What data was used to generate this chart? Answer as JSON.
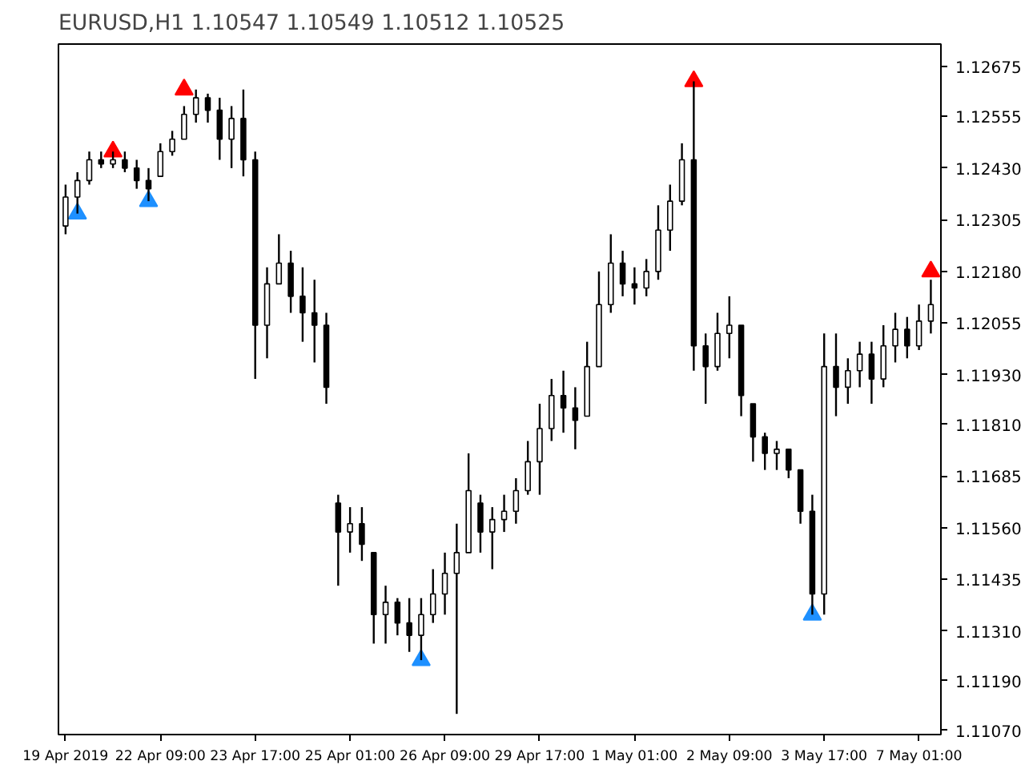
{
  "chart_data": {
    "type": "candlestick",
    "title": "EURUSD,H1 1.10547 1.10549 1.10512 1.10525",
    "color": "#000000",
    "grid": false,
    "categories": [
      "19 Apr 2019",
      null,
      null,
      null,
      null,
      null,
      null,
      null,
      "22 Apr 09:00",
      null,
      null,
      null,
      null,
      null,
      null,
      null,
      "23 Apr 17:00",
      null,
      null,
      null,
      null,
      null,
      null,
      null,
      "25 Apr 01:00",
      null,
      null,
      null,
      null,
      null,
      null,
      null,
      "26 Apr 09:00",
      null,
      null,
      null,
      null,
      null,
      null,
      null,
      "29 Apr 17:00",
      null,
      null,
      null,
      null,
      null,
      null,
      null,
      "1 May 01:00",
      null,
      null,
      null,
      null,
      null,
      null,
      null,
      "2 May 09:00",
      null,
      null,
      null,
      null,
      null,
      null,
      null,
      "3 May 17:00",
      null,
      null,
      null,
      null,
      null,
      null,
      null,
      "7 May 01:00",
      null
    ],
    "ohlc": [
      [
        1.1229,
        1.1239,
        1.1227,
        1.1236
      ],
      [
        1.1236,
        1.1242,
        1.1232,
        1.124
      ],
      [
        1.124,
        1.1247,
        1.1239,
        1.1245
      ],
      [
        1.1245,
        1.1247,
        1.1243,
        1.1244
      ],
      [
        1.1244,
        1.1247,
        1.1243,
        1.1245
      ],
      [
        1.1245,
        1.1247,
        1.1242,
        1.1243
      ],
      [
        1.1243,
        1.1245,
        1.1238,
        1.124
      ],
      [
        1.124,
        1.1243,
        1.1235,
        1.1238
      ],
      [
        1.1241,
        1.1249,
        1.1241,
        1.1247
      ],
      [
        1.1247,
        1.1252,
        1.1246,
        1.125
      ],
      [
        1.125,
        1.1258,
        1.125,
        1.1256
      ],
      [
        1.1256,
        1.1262,
        1.1254,
        1.126
      ],
      [
        1.126,
        1.1261,
        1.1254,
        1.1257
      ],
      [
        1.1257,
        1.126,
        1.1245,
        1.125
      ],
      [
        1.125,
        1.1258,
        1.1243,
        1.1255
      ],
      [
        1.1255,
        1.1262,
        1.1241,
        1.1245
      ],
      [
        1.1245,
        1.1247,
        1.1192,
        1.1205
      ],
      [
        1.1205,
        1.1219,
        1.1197,
        1.1215
      ],
      [
        1.1215,
        1.1227,
        1.1215,
        1.122
      ],
      [
        1.122,
        1.1223,
        1.1208,
        1.1212
      ],
      [
        1.1212,
        1.1219,
        1.1201,
        1.1208
      ],
      [
        1.1208,
        1.1216,
        1.1196,
        1.1205
      ],
      [
        1.1205,
        1.1208,
        1.1186,
        1.119
      ],
      [
        1.1162,
        1.1164,
        1.1142,
        1.1155
      ],
      [
        1.1155,
        1.1161,
        1.115,
        1.1157
      ],
      [
        1.1157,
        1.1161,
        1.1148,
        1.1152
      ],
      [
        1.115,
        1.115,
        1.1128,
        1.1135
      ],
      [
        1.1135,
        1.1142,
        1.1128,
        1.1138
      ],
      [
        1.1138,
        1.1139,
        1.113,
        1.1133
      ],
      [
        1.1133,
        1.1139,
        1.1126,
        1.113
      ],
      [
        1.113,
        1.1139,
        1.1124,
        1.1135
      ],
      [
        1.1135,
        1.1146,
        1.1133,
        1.114
      ],
      [
        1.114,
        1.115,
        1.1135,
        1.1145
      ],
      [
        1.1145,
        1.1157,
        1.1111,
        1.115
      ],
      [
        1.115,
        1.1174,
        1.115,
        1.1165
      ],
      [
        1.1162,
        1.1164,
        1.115,
        1.1155
      ],
      [
        1.1155,
        1.1161,
        1.1146,
        1.1158
      ],
      [
        1.1158,
        1.1164,
        1.1155,
        1.116
      ],
      [
        1.116,
        1.1168,
        1.1157,
        1.1165
      ],
      [
        1.1165,
        1.1177,
        1.1164,
        1.1172
      ],
      [
        1.1172,
        1.1186,
        1.1164,
        1.118
      ],
      [
        1.118,
        1.1192,
        1.1177,
        1.1188
      ],
      [
        1.1188,
        1.1194,
        1.1179,
        1.1185
      ],
      [
        1.1185,
        1.119,
        1.1175,
        1.1182
      ],
      [
        1.1183,
        1.1201,
        1.1183,
        1.1195
      ],
      [
        1.1195,
        1.1218,
        1.1195,
        1.121
      ],
      [
        1.121,
        1.1227,
        1.1208,
        1.122
      ],
      [
        1.122,
        1.1223,
        1.1212,
        1.1215
      ],
      [
        1.1215,
        1.1219,
        1.121,
        1.1214
      ],
      [
        1.1214,
        1.1221,
        1.1212,
        1.1218
      ],
      [
        1.1218,
        1.1234,
        1.1216,
        1.1228
      ],
      [
        1.1228,
        1.1239,
        1.1223,
        1.1235
      ],
      [
        1.1235,
        1.1249,
        1.1234,
        1.1245
      ],
      [
        1.1245,
        1.1264,
        1.1194,
        1.12
      ],
      [
        1.12,
        1.1203,
        1.1186,
        1.1195
      ],
      [
        1.1195,
        1.1208,
        1.1194,
        1.1203
      ],
      [
        1.1203,
        1.1212,
        1.1197,
        1.1205
      ],
      [
        1.1205,
        1.1205,
        1.1183,
        1.1188
      ],
      [
        1.1186,
        1.1186,
        1.1172,
        1.1178
      ],
      [
        1.1178,
        1.1179,
        1.117,
        1.1174
      ],
      [
        1.1174,
        1.1177,
        1.117,
        1.1175
      ],
      [
        1.1175,
        1.1175,
        1.1168,
        1.117
      ],
      [
        1.117,
        1.117,
        1.1157,
        1.116
      ],
      [
        1.116,
        1.1164,
        1.1135,
        1.114
      ],
      [
        1.114,
        1.1203,
        1.1135,
        1.1195
      ],
      [
        1.1195,
        1.1203,
        1.1183,
        1.119
      ],
      [
        1.119,
        1.1197,
        1.1186,
        1.1194
      ],
      [
        1.1194,
        1.1201,
        1.119,
        1.1198
      ],
      [
        1.1198,
        1.1201,
        1.1186,
        1.1192
      ],
      [
        1.1192,
        1.1205,
        1.119,
        1.12
      ],
      [
        1.12,
        1.1208,
        1.1196,
        1.1204
      ],
      [
        1.1204,
        1.1207,
        1.1197,
        1.12
      ],
      [
        1.12,
        1.121,
        1.1199,
        1.1206
      ],
      [
        1.1206,
        1.1216,
        1.1203,
        1.121
      ]
    ],
    "series": [
      {
        "type": "scatter",
        "color": "#1e90ff",
        "marker": "triangle",
        "values": [
          null,
          1.1232,
          null,
          null,
          null,
          null,
          null,
          1.1235,
          null,
          null,
          null,
          null,
          null,
          null,
          null,
          null,
          null,
          null,
          null,
          null,
          null,
          null,
          null,
          null,
          null,
          null,
          null,
          null,
          null,
          null,
          1.1124,
          null,
          null,
          null,
          null,
          null,
          null,
          null,
          null,
          null,
          null,
          null,
          null,
          null,
          null,
          null,
          null,
          null,
          null,
          null,
          null,
          null,
          null,
          null,
          null,
          null,
          null,
          null,
          null,
          null,
          null,
          null,
          null,
          1.1135,
          null,
          null,
          null,
          null,
          null,
          null,
          null,
          null,
          null,
          null
        ]
      },
      {
        "type": "scatter",
        "color": "#ff0000",
        "marker": "triangle",
        "values": [
          null,
          null,
          null,
          null,
          1.1247,
          null,
          null,
          null,
          null,
          null,
          1.1262,
          null,
          null,
          null,
          null,
          null,
          null,
          null,
          null,
          null,
          null,
          null,
          null,
          null,
          null,
          null,
          null,
          null,
          null,
          null,
          null,
          null,
          null,
          null,
          null,
          null,
          null,
          null,
          null,
          null,
          null,
          null,
          null,
          null,
          null,
          null,
          null,
          null,
          null,
          null,
          null,
          null,
          null,
          1.1264,
          null,
          null,
          null,
          null,
          null,
          null,
          null,
          null,
          null,
          null,
          null,
          null,
          null,
          null,
          null,
          null,
          null,
          null,
          null,
          1.1218
        ]
      }
    ],
    "ylim": [
      1.1106,
      1.1273
    ],
    "yticks": [
      {
        "value": 1.12675,
        "label": "1.12675"
      },
      {
        "value": 1.12555,
        "label": "1.12555"
      },
      {
        "value": 1.1243,
        "label": "1.12430"
      },
      {
        "value": 1.12305,
        "label": "1.12305"
      },
      {
        "value": 1.1218,
        "label": "1.12180"
      },
      {
        "value": 1.12055,
        "label": "1.12055"
      },
      {
        "value": 1.1193,
        "label": "1.11930"
      },
      {
        "value": 1.1181,
        "label": "1.11810"
      },
      {
        "value": 1.11685,
        "label": "1.11685"
      },
      {
        "value": 1.1156,
        "label": "1.11560"
      },
      {
        "value": 1.11435,
        "label": "1.11435"
      },
      {
        "value": 1.1131,
        "label": "1.11310"
      },
      {
        "value": 1.1119,
        "label": "1.11190"
      },
      {
        "value": 1.1107,
        "label": "1.11070"
      }
    ]
  }
}
